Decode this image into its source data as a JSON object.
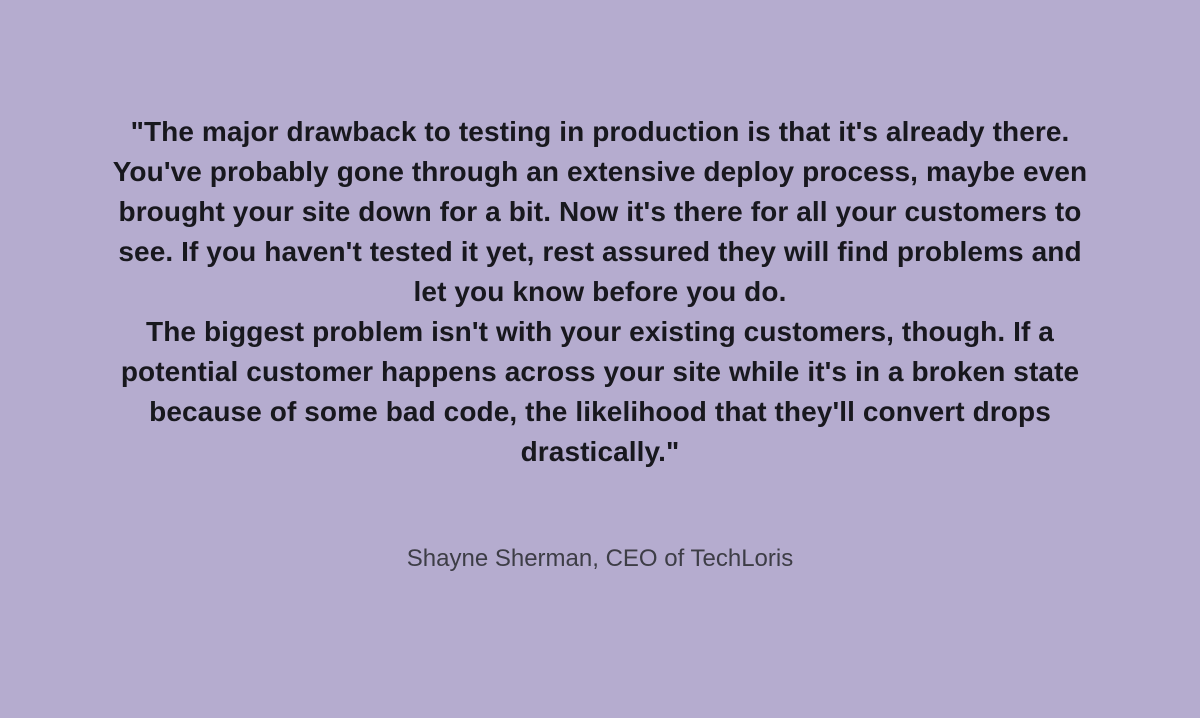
{
  "quote_card": {
    "quote": {
      "paragraph_1": "\"The major drawback to testing in production is that it's already there. You've probably gone through an extensive deploy process, maybe even brought your site down for a bit. Now it's there for all your customers to see. If you haven't tested it yet, rest assured they will find problems and let you know before you do.",
      "paragraph_2": "The biggest problem isn't with your existing customers, though. If a potential customer happens across your site while it's in a broken state because of some bad code, the likelihood that they'll convert drops drastically.\""
    },
    "attribution": "Shayne Sherman, CEO of TechLoris",
    "colors": {
      "background": "#b5accf",
      "quote_text": "#18181e",
      "attribution_text": "#3d3d46"
    }
  }
}
